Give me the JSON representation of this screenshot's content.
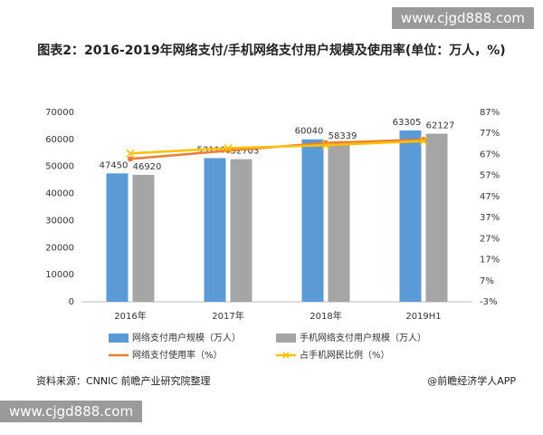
{
  "chart_data": {
    "type": "bar-line",
    "title": "图表2：2016-2019年网络支付/手机网络支付用户规模及使用率(单位：万人，%)",
    "categories": [
      "2016年",
      "2017年",
      "2018年",
      "2019H1"
    ],
    "series": [
      {
        "name": "网络支付用户规模（万人）",
        "type": "bar",
        "color": "#5b9bd5",
        "values": [
          47450,
          53110,
          60040,
          63305
        ]
      },
      {
        "name": "手机网络支付用户规模（万人）",
        "type": "bar",
        "color": "#a5a5a5",
        "values": [
          46920,
          52703,
          58339,
          62127
        ]
      },
      {
        "name": "网络支付使用率（%）",
        "type": "line",
        "axis": "y2",
        "color": "#ed7d31",
        "marker": "circle",
        "values": [
          64.9,
          68.8,
          72.5,
          74.1
        ]
      },
      {
        "name": "占手机网民比例（%）",
        "type": "line",
        "axis": "y2",
        "color": "#ffc000",
        "marker": "x",
        "values": [
          67.5,
          70.0,
          71.4,
          73.4
        ]
      }
    ],
    "ylim": [
      0,
      70000
    ],
    "yticks": [
      0,
      10000,
      20000,
      30000,
      40000,
      50000,
      60000,
      70000
    ],
    "y2lim": [
      -3,
      87
    ],
    "y2ticks": [
      {
        "value": -3,
        "label": "-3%"
      },
      {
        "value": 7,
        "label": "7%"
      },
      {
        "value": 17,
        "label": "17%"
      },
      {
        "value": 27,
        "label": "27%"
      },
      {
        "value": 37,
        "label": "37%"
      },
      {
        "value": 47,
        "label": "47%"
      },
      {
        "value": 57,
        "label": "57%"
      },
      {
        "value": 67,
        "label": "67%"
      },
      {
        "value": 77,
        "label": "77%"
      },
      {
        "value": 87,
        "label": "87%"
      }
    ],
    "grid": false
  },
  "source": "资料来源：CNNIC 前瞻产业研究院整理",
  "credit": "@前瞻经济学人APP",
  "watermark": "www.cjgd888.com"
}
